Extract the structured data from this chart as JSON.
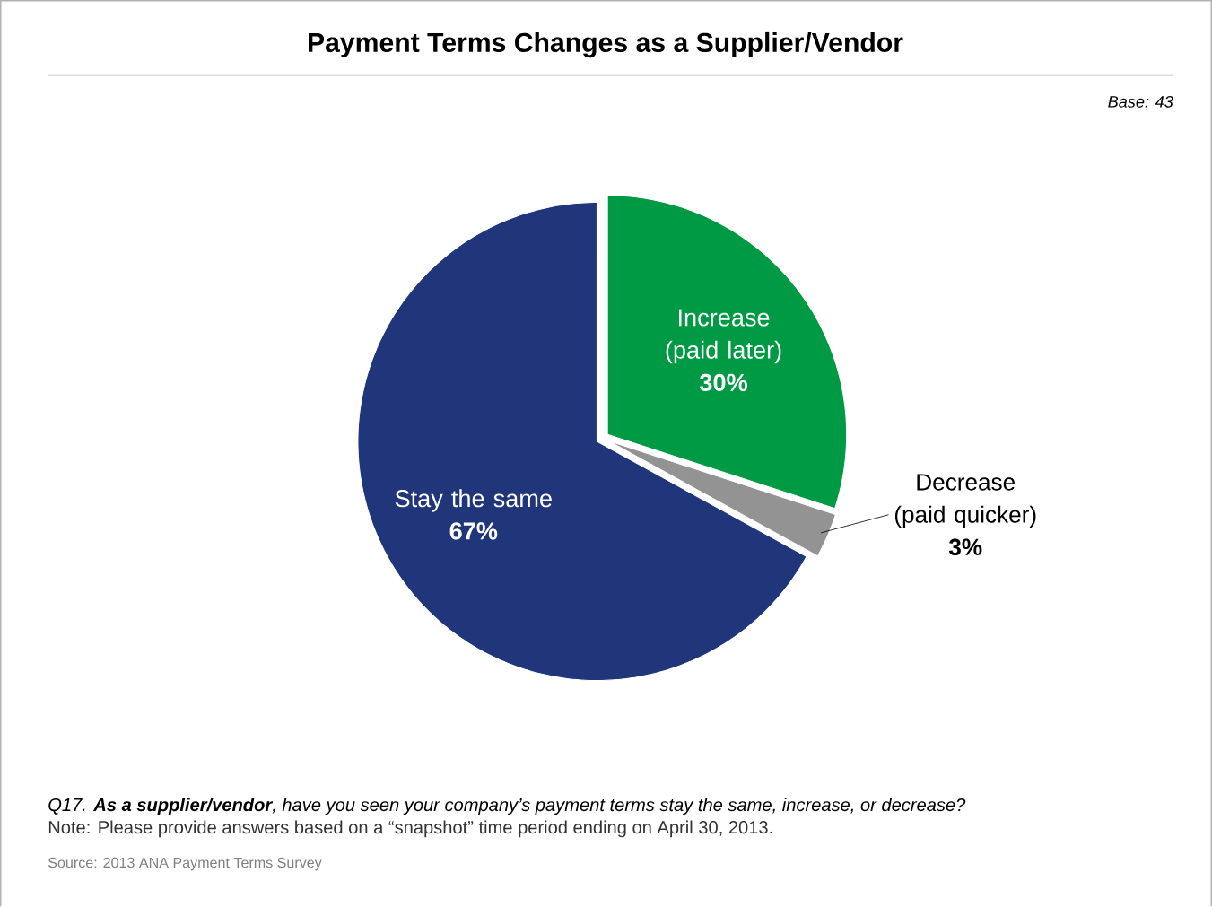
{
  "chart_data": {
    "type": "pie",
    "title": "Payment Terms Changes as a Supplier/Vendor",
    "categories": [
      "Increase (paid later)",
      "Decrease (paid quicker)",
      "Stay the same"
    ],
    "values": [
      30,
      3,
      67
    ],
    "value_labels": [
      "30%",
      "3%",
      "67%"
    ],
    "colors": [
      "#009a44",
      "#939393",
      "#21367a"
    ],
    "annotations": [
      "Base: 43",
      "Q17. **As a supplier/vendor**, have you seen your company’s payment terms stay the same, increase, or decrease?",
      "Note: Please provide answers based on a “snapshot” time period ending on April 30, 2013.",
      "Source: 2013 ANA Payment Terms Survey"
    ]
  }
}
